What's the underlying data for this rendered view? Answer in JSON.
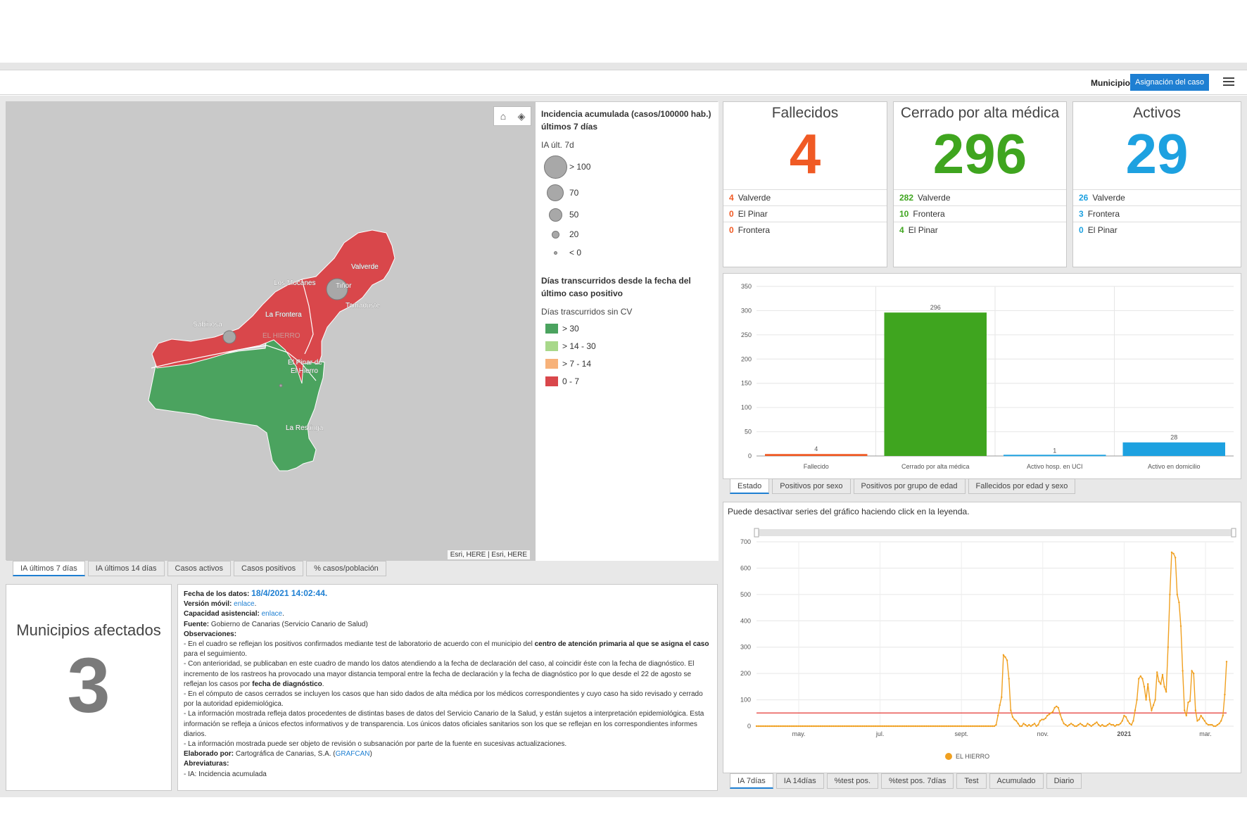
{
  "header": {
    "municipio_label": "Municipio",
    "selector_label": "Asignación del caso",
    "menu_icon": "hamburger-menu-icon"
  },
  "map": {
    "attribution": "Esri, HERE | Esri, HERE",
    "tools": [
      "home-icon",
      "layers-icon"
    ],
    "places": {
      "valverde": "Valverde",
      "los_mocanes": "Los Mocanes",
      "tinor": "Tiñor",
      "tamaduste": "Tamaduste",
      "la_frontera": "La Frontera",
      "sabinosa": "Sabinosa",
      "el_hierro": "EL HIERRO",
      "el_pinar_1": "El Pinar de",
      "el_pinar_2": "El Hierro",
      "la_restinga": "La Restinga"
    },
    "colors": {
      "red": "#d9474b",
      "green": "#4ba35f",
      "land_bg": "#c9c9c9"
    },
    "bubbles": [
      {
        "label": "Tiñor",
        "value": 70
      },
      {
        "label": "Sabinosa",
        "value": 50
      },
      {
        "label": "El Pinar",
        "value": 5
      }
    ]
  },
  "legend": {
    "title1": "Incidencia acumulada (casos/100000 hab.) últimos 7 días",
    "sub1": "IA últ. 7d",
    "sizes": [
      "> 100",
      "70",
      "50",
      "20",
      "< 0"
    ],
    "title2": "Días transcurridos desde la fecha del último caso positivo",
    "sub2": "Días trascurridos sin CV",
    "classes": [
      {
        "label": "> 30",
        "color": "#4ba35f"
      },
      {
        "label": "> 14 - 30",
        "color": "#a8d88a"
      },
      {
        "label": "> 7 - 14",
        "color": "#f7b27a"
      },
      {
        "label": "0 - 7",
        "color": "#d9474b"
      }
    ]
  },
  "map_tabs": [
    "IA últimos 7 días",
    "IA últimos 14 días",
    "Casos activos",
    "Casos positivos",
    "% casos/población"
  ],
  "kpis": [
    {
      "title": "Fallecidos",
      "value": "4",
      "color": "#f05a24",
      "rows": [
        {
          "n": "4",
          "name": "Valverde"
        },
        {
          "n": "0",
          "name": "El Pinar"
        },
        {
          "n": "0",
          "name": "Frontera"
        }
      ]
    },
    {
      "title": "Cerrado por alta médica",
      "value": "296",
      "color": "#3fa51f",
      "rows": [
        {
          "n": "282",
          "name": "Valverde"
        },
        {
          "n": "10",
          "name": "Frontera"
        },
        {
          "n": "4",
          "name": "El Pinar"
        }
      ]
    },
    {
      "title": "Activos",
      "value": "29",
      "color": "#1da1e0",
      "rows": [
        {
          "n": "26",
          "name": "Valverde"
        },
        {
          "n": "3",
          "name": "Frontera"
        },
        {
          "n": "0",
          "name": "El Pinar"
        }
      ]
    }
  ],
  "bar_tabs": [
    "Estado",
    "Positivos por sexo",
    "Positivos por grupo de edad",
    "Fallecidos por edad y sexo"
  ],
  "line_tabs": [
    "IA 7días",
    "IA 14días",
    "%test pos.",
    "%test pos. 7días",
    "Test",
    "Acumulado",
    "Diario"
  ],
  "chart_data": [
    {
      "type": "bar",
      "categories": [
        "Fallecido",
        "Cerrado por alta médica",
        "Activo hosp. en UCI",
        "Activo en domicilio"
      ],
      "values": [
        4,
        296,
        1,
        28
      ],
      "colors": [
        "#f05a24",
        "#3fa51f",
        "#1da1e0",
        "#1da1e0"
      ],
      "ylim": [
        0,
        350
      ],
      "yticks": [
        0,
        50,
        100,
        150,
        200,
        250,
        300,
        350
      ],
      "title": "",
      "xlabel": "",
      "ylabel": ""
    },
    {
      "type": "line",
      "note": "Puede desactivar series del gráfico haciendo click en la leyenda.",
      "series": [
        {
          "name": "EL HIERRO",
          "color": "#f0a020",
          "values": [
            0,
            0,
            0,
            0,
            0,
            0,
            0,
            0,
            0,
            0,
            0,
            0,
            0,
            0,
            0,
            0,
            0,
            0,
            0,
            0,
            0,
            0,
            0,
            0,
            0,
            0,
            0,
            0,
            0,
            0,
            0,
            0,
            0,
            0,
            0,
            0,
            0,
            0,
            0,
            0,
            0,
            0,
            0,
            0,
            0,
            0,
            0,
            0,
            0,
            0,
            0,
            0,
            0,
            0,
            0,
            0,
            0,
            0,
            0,
            0,
            0,
            0,
            0,
            0,
            0,
            0,
            0,
            0,
            0,
            0,
            0,
            0,
            0,
            0,
            0,
            0,
            0,
            0,
            0,
            0,
            0,
            0,
            0,
            0,
            0,
            0,
            0,
            0,
            0,
            0,
            0,
            0,
            0,
            0,
            0,
            0,
            0,
            0,
            0,
            0,
            0,
            0,
            0,
            0,
            0,
            0,
            0,
            0,
            0,
            0,
            0,
            0,
            0,
            0,
            0,
            0,
            0,
            0,
            0,
            0,
            0,
            0,
            0,
            0,
            0,
            0,
            0,
            0,
            0,
            0,
            0,
            5,
            40,
            80,
            110,
            270,
            262,
            250,
            180,
            60,
            35,
            25,
            20,
            10,
            0,
            0,
            10,
            5,
            0,
            5,
            0,
            5,
            10,
            0,
            5,
            20,
            25,
            25,
            30,
            40,
            45,
            50,
            55,
            70,
            75,
            70,
            45,
            25,
            10,
            5,
            0,
            5,
            10,
            5,
            0,
            0,
            5,
            10,
            5,
            0,
            0,
            10,
            5,
            0,
            5,
            10,
            15,
            5,
            0,
            5,
            0,
            0,
            5,
            10,
            5,
            5,
            0,
            5,
            5,
            10,
            20,
            40,
            35,
            20,
            10,
            5,
            20,
            60,
            100,
            180,
            190,
            180,
            150,
            100,
            160,
            100,
            60,
            80,
            100,
            205,
            170,
            160,
            195,
            150,
            130,
            300,
            500,
            660,
            655,
            640,
            500,
            470,
            380,
            210,
            60,
            40,
            90,
            95,
            210,
            200,
            60,
            20,
            25,
            40,
            30,
            20,
            10,
            5,
            5,
            5,
            0,
            0,
            5,
            10,
            20,
            40,
            120,
            245
          ]
        }
      ],
      "x_ticks": [
        "may.",
        "jul.",
        "sept.",
        "nov.",
        "2021",
        "mar."
      ],
      "ylim": [
        0,
        700
      ],
      "yticks": [
        0,
        100,
        200,
        300,
        400,
        500,
        600,
        700
      ],
      "reference_line": {
        "value": 50,
        "color": "#e53935"
      }
    }
  ],
  "municipios": {
    "title": "Municipios afectados",
    "value": "3"
  },
  "info": {
    "fecha_label": "Fecha de los datos:",
    "fecha_value": "18/4/2021 14:02:44.",
    "version_label": "Versión móvil:",
    "capacidad_label": "Capacidad asistencial:",
    "link_text": "enlace",
    "fuente_label": "Fuente:",
    "fuente_value": "Gobierno de Canarias (Servicio Canario de Salud)",
    "obs_label": "Observaciones:",
    "obs1a": "- En el cuadro se reflejan los positivos confirmados mediante test de laboratorio de acuerdo con el municipio del ",
    "obs1b": "centro de atención primaria al que se asigna el caso",
    "obs1c": " para el seguimiento.",
    "obs2a": "- Con anterioridad, se publicaban en este cuadro de mando los datos atendiendo a la fecha de declaración del caso, al coincidir éste con la fecha de diagnóstico. El incremento de los rastreos ha provocado una mayor distancia temporal entre la fecha de declaración y la fecha de diagnóstico por lo que desde el 22 de agosto se reflejan los casos por ",
    "obs2b": "fecha de diagnóstico",
    "obs3": "- En el cómputo de casos cerrados se incluyen los casos que han sido dados de alta médica por los médicos correspondientes y cuyo caso ha sido revisado y cerrado por la autoridad epidemiológica.",
    "obs4": "- La información mostrada refleja datos procedentes de distintas bases de datos del Servicio Canario de la Salud, y están sujetos a interpretación epidemiológica. Esta información se refleja a únicos efectos informativos y de transparencia. Los únicos datos oficiales sanitarios son los que se reflejan en los correspondientes informes diarios.",
    "obs5": "- La información mostrada puede ser objeto de revisión o subsanación por parte de la fuente en sucesivas actualizaciones.",
    "elab_label": "Elaborado por:",
    "elab_value": "Cartográfica de Canarias, S.A. (",
    "elab_link": "GRAFCAN",
    "elab_end": ")",
    "abrev_label": "Abreviaturas:",
    "abrev1": "- IA: Incidencia acumulada"
  }
}
